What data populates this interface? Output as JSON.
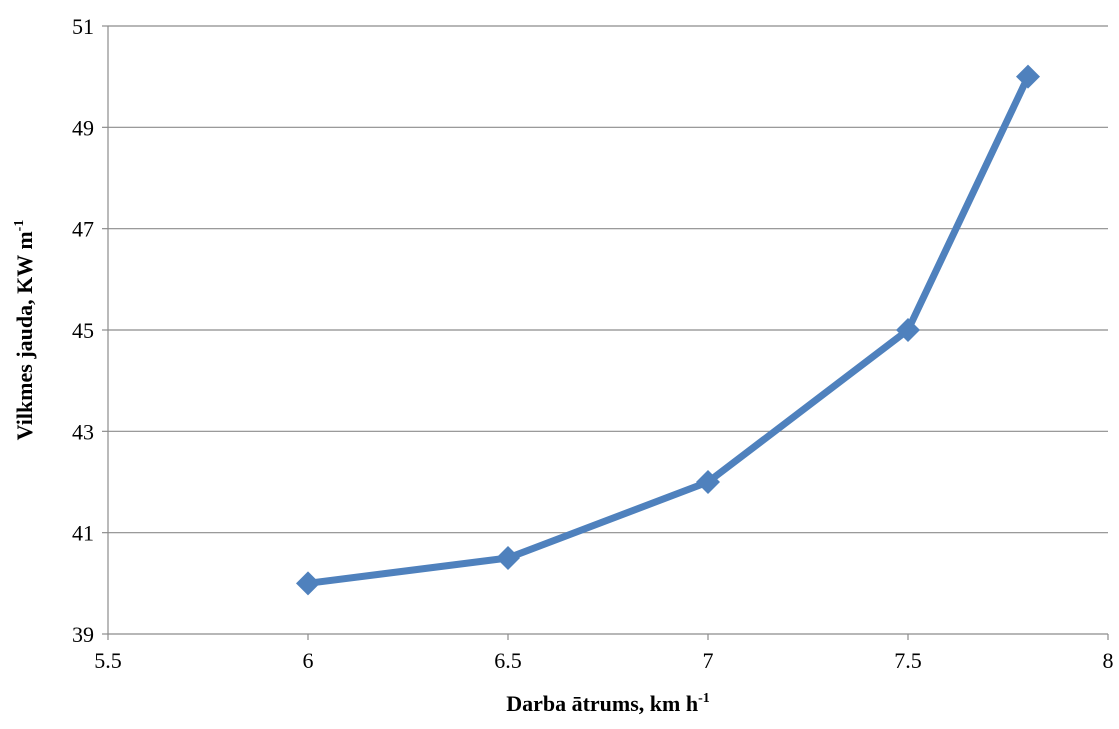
{
  "chart_data": {
    "type": "line",
    "title": "",
    "xlabel": "Darba ātrums, km h",
    "xlabel_sup": "-1",
    "ylabel": "Vilkmes jauda, KW m",
    "ylabel_sup": "-1",
    "xlim": [
      5.5,
      8
    ],
    "ylim": [
      39,
      51
    ],
    "x_ticks": [
      "5.5",
      "6",
      "6.5",
      "7",
      "7.5",
      "8"
    ],
    "y_ticks": [
      "39",
      "41",
      "43",
      "45",
      "47",
      "49",
      "51"
    ],
    "grid": "horizontal",
    "legend": "none",
    "marker": "diamond",
    "color": "#4f81bd",
    "series": [
      {
        "x": [
          6,
          6.5,
          7,
          7.5,
          7.8
        ],
        "values": [
          40,
          40.5,
          42,
          45,
          50
        ]
      }
    ]
  }
}
